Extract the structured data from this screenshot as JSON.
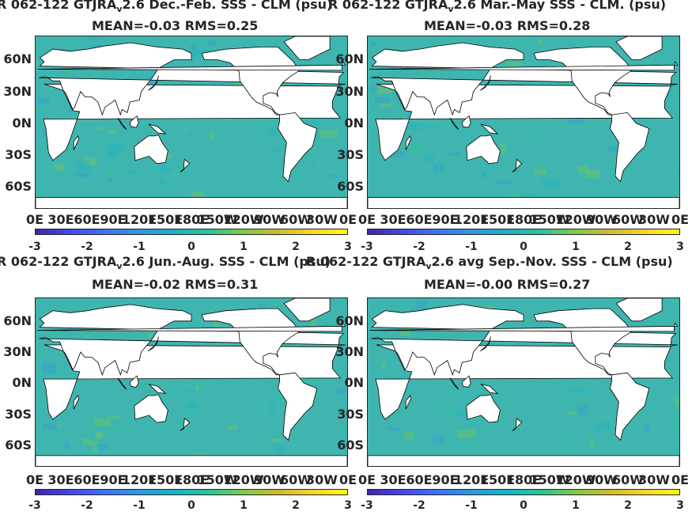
{
  "chart_data": [
    {
      "type": "heatmap",
      "title": "R 062-122 GTJRA",
      "title_sub": "v",
      "title_rest": "2.6  Dec.-Feb. SSS - CLM (psu)",
      "subtitle": "MEAN=-0.03   RMS=0.25",
      "y_ticks": [
        "60N",
        "30N",
        "0N",
        "30S",
        "60S"
      ],
      "x_ticks": [
        "0E",
        "30E",
        "60E",
        "90E",
        "120E",
        "150E",
        "180E",
        "150W",
        "120W",
        "90W",
        "60W",
        "30W",
        "0E"
      ],
      "colorbar_ticks": [
        "-3",
        "-2",
        "-1",
        "0",
        "1",
        "2",
        "3"
      ],
      "clim": [
        -3,
        3
      ]
    },
    {
      "type": "heatmap",
      "title": "R 062-122 GTJRA",
      "title_sub": "v",
      "title_rest": "2.6 Mar.-May SSS - CLM. (psu)",
      "subtitle": "MEAN=-0.03   RMS=0.28",
      "y_ticks": [
        "60N",
        "30N",
        "0N",
        "30S",
        "60S"
      ],
      "x_ticks": [
        "0E",
        "30E",
        "60E",
        "90E",
        "120E",
        "150E",
        "180E",
        "150W",
        "120W",
        "90W",
        "60W",
        "30W",
        "0E"
      ],
      "colorbar_ticks": [
        "-3",
        "-2",
        "-1",
        "0",
        "1",
        "2",
        "3"
      ],
      "clim": [
        -3,
        3
      ]
    },
    {
      "type": "heatmap",
      "title": "R 062-122 GTJRA",
      "title_sub": "v",
      "title_rest": "2.6 Jun.-Aug. SSS - CLM (psu)",
      "subtitle": "MEAN=-0.02   RMS=0.31",
      "y_ticks": [
        "60N",
        "30N",
        "0N",
        "30S",
        "60S"
      ],
      "x_ticks": [
        "0E",
        "30E",
        "60E",
        "90E",
        "120E",
        "150E",
        "180E",
        "150W",
        "120W",
        "90W",
        "60W",
        "30W",
        "0E"
      ],
      "colorbar_ticks": [
        "-3",
        "-2",
        "-1",
        "0",
        "1",
        "2",
        "3"
      ],
      "clim": [
        -3,
        3
      ]
    },
    {
      "type": "heatmap",
      "title": "R 062-122 GTJRA",
      "title_sub": "v",
      "title_rest": "2.6 avg Sep.-Nov. SSS - CLM (psu)",
      "subtitle": "MEAN=-0.00   RMS=0.27",
      "y_ticks": [
        "60N",
        "30N",
        "0N",
        "30S",
        "60S"
      ],
      "x_ticks": [
        "0E",
        "30E",
        "60E",
        "90E",
        "120E",
        "150E",
        "180E",
        "150W",
        "120W",
        "90W",
        "60W",
        "30W",
        "0E"
      ],
      "colorbar_ticks": [
        "-3",
        "-2",
        "-1",
        "0",
        "1",
        "2",
        "3"
      ],
      "clim": [
        -3,
        3
      ]
    }
  ],
  "colors": {
    "ocean": "#3fb5b0",
    "land": "#ffffff",
    "colormap": [
      "#3e26a8",
      "#4746eb",
      "#3f72f3",
      "#2e98de",
      "#16b3c4",
      "#2dc29a",
      "#7ec94a",
      "#ccbc2e",
      "#fcd22c",
      "#f9fb14"
    ]
  }
}
